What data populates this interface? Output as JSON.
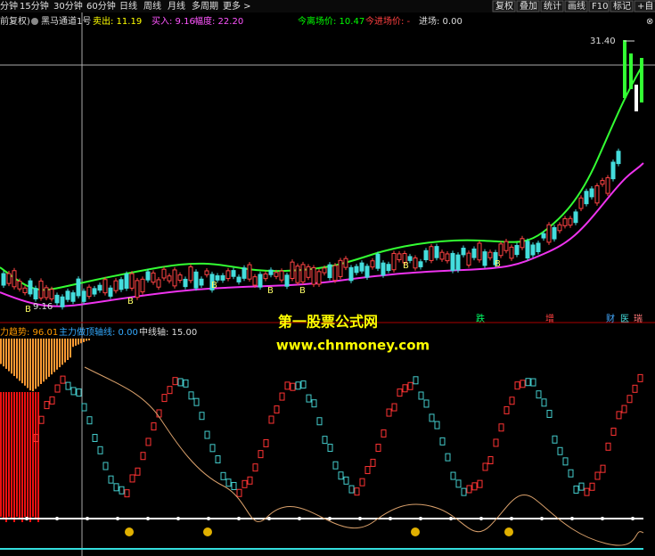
{
  "toolbar": {
    "left": [
      "分钟",
      "15分钟",
      "30分钟",
      "60分钟",
      "日线",
      "周线",
      "月线",
      "多周期",
      "更多 >"
    ],
    "right": [
      "复权",
      "叠加",
      "统计",
      "画线",
      "F10",
      "标记",
      "+自"
    ]
  },
  "main_panel": {
    "adjust": "前复权)",
    "indicator": "黑马通道1号",
    "sell": "卖出: 11.19",
    "buy": "买入: 9.16",
    "range": "幅度: 22.20",
    "exit_price": "今离场价: 10.47",
    "entry_price": "今进场价: -",
    "entry": "进场: 0.00",
    "high_label": "31.40",
    "low_label": "9.16",
    "buy_marker": "B",
    "tags": [
      "跌",
      "增",
      "财",
      "医",
      "瑞"
    ]
  },
  "watermark": {
    "name": "第一股票公式网",
    "url": "www.chnmoney.com"
  },
  "lower_panel": {
    "trend": "力趋势: 96.01",
    "top_axis": "主力做顶轴线: 0.00",
    "mid_axis": "中线轴: 15.00"
  }
}
